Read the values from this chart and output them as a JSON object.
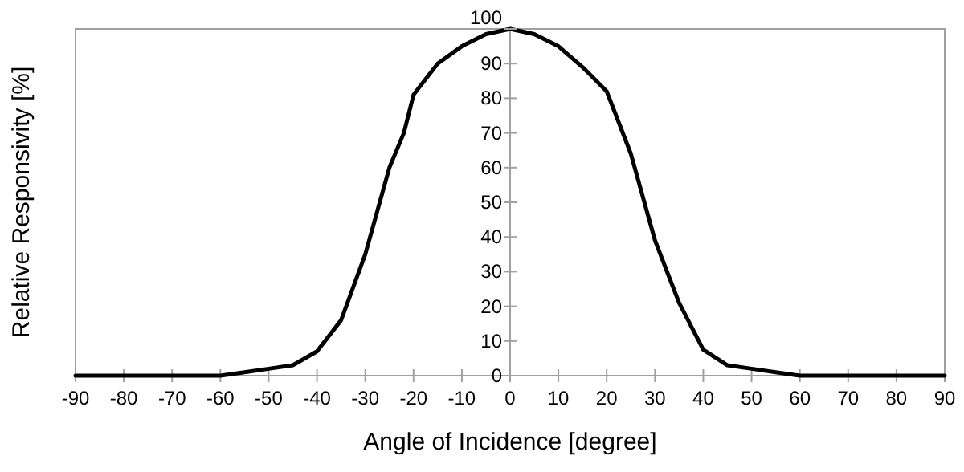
{
  "chart_data": {
    "type": "line",
    "xlabel": "Angle of Incidence [degree]",
    "ylabel": "Relative Responsivity [%]",
    "x": [
      -90,
      -60,
      -55,
      -50,
      -45,
      -40,
      -35,
      -30,
      -25,
      -22,
      -20,
      -15,
      -10,
      -5,
      0,
      5,
      10,
      15,
      20,
      25,
      30,
      35,
      40,
      45,
      50,
      55,
      60,
      90
    ],
    "series": [
      {
        "color": "#000000",
        "values": [
          0,
          0,
          1,
          2,
          3,
          7,
          16,
          35,
          60,
          70,
          81,
          90,
          95,
          98.5,
          100,
          98.5,
          95,
          89,
          82,
          64,
          39,
          21,
          7.5,
          3,
          2,
          1,
          0,
          0
        ]
      }
    ],
    "xlim": [
      -90,
      90
    ],
    "xticks": [
      -90,
      -80,
      -70,
      -60,
      -50,
      -40,
      -30,
      -20,
      -10,
      0,
      10,
      20,
      30,
      40,
      50,
      60,
      70,
      80,
      90
    ],
    "ylim": [
      0,
      100
    ],
    "yticks": [
      0,
      10,
      20,
      30,
      40,
      50,
      60,
      70,
      80,
      90,
      100
    ],
    "marker": "none",
    "line_style": "solid"
  }
}
